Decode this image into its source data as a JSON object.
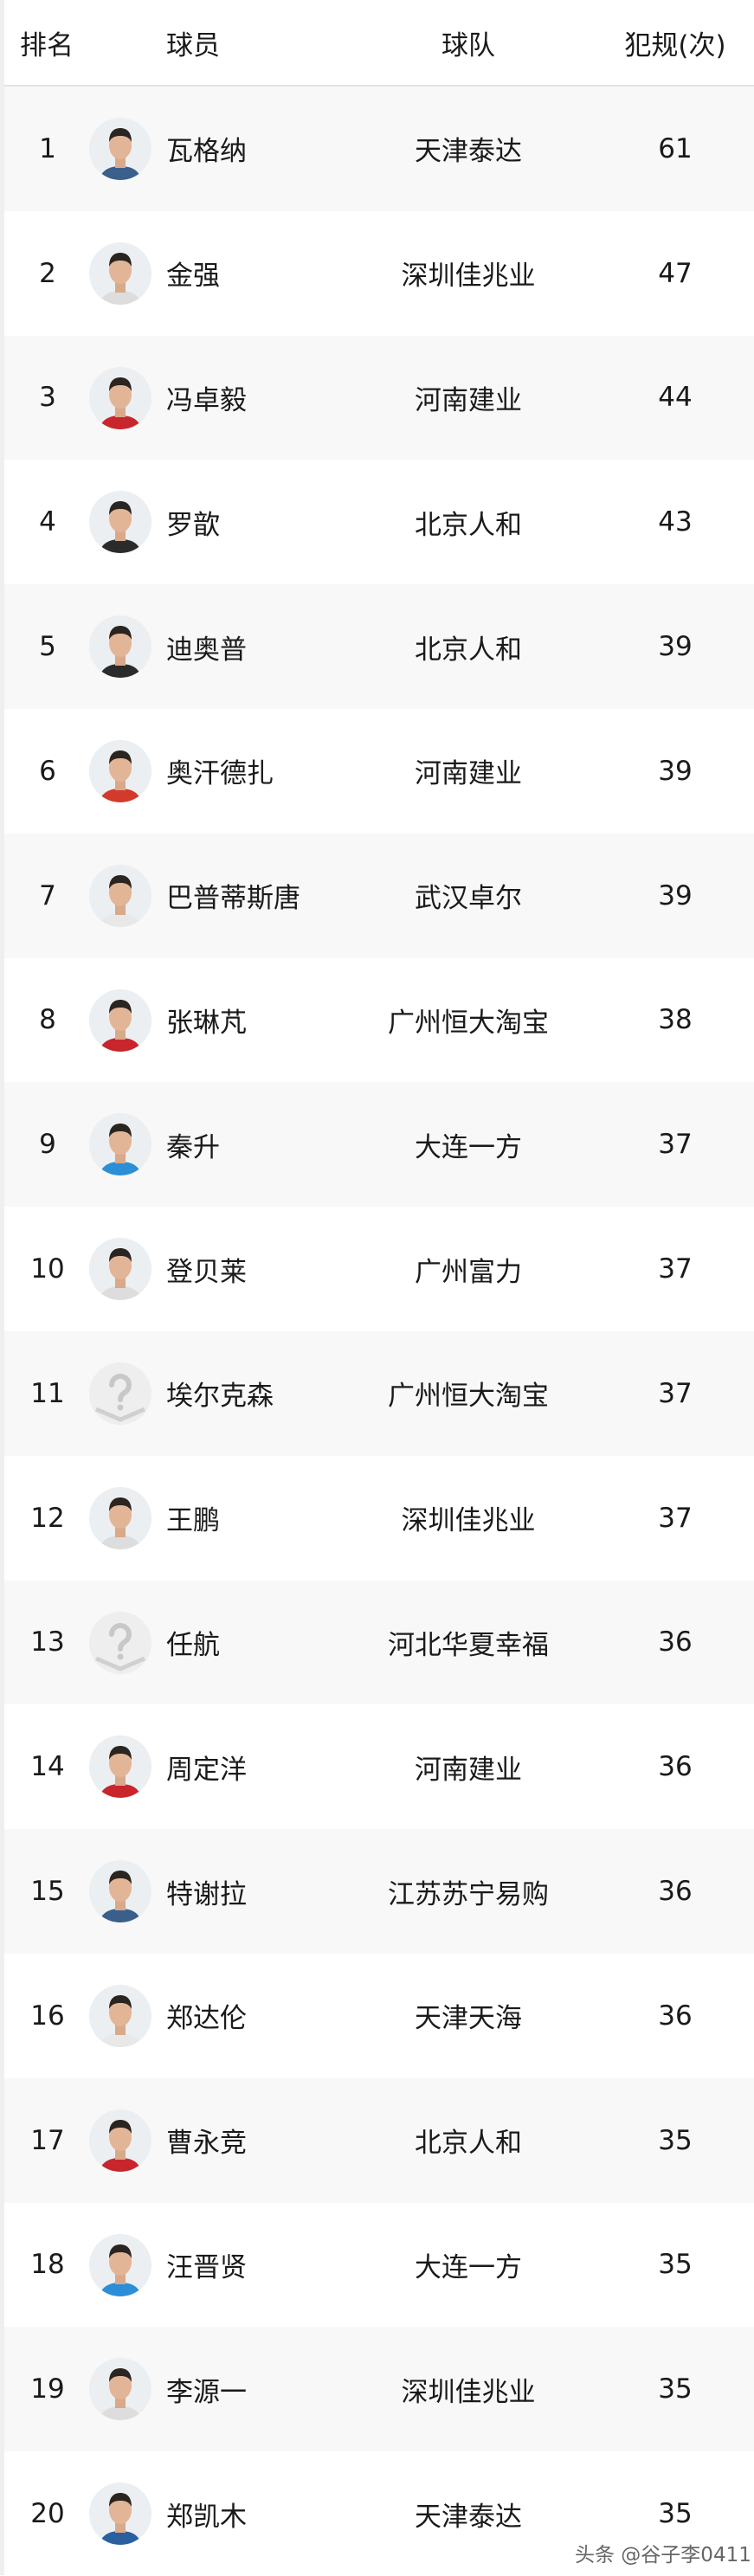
{
  "header": {
    "rank": "排名",
    "player": "球员",
    "team": "球队",
    "fouls": "犯规(次)"
  },
  "rows": [
    {
      "rank": "1",
      "player": "瓦格纳",
      "team": "天津泰达",
      "fouls": "61",
      "avatar": "player-photo",
      "shirt": "#3a5f8a"
    },
    {
      "rank": "2",
      "player": "金强",
      "team": "深圳佳兆业",
      "fouls": "47",
      "avatar": "player-photo",
      "shirt": "#dddddd"
    },
    {
      "rank": "3",
      "player": "冯卓毅",
      "team": "河南建业",
      "fouls": "44",
      "avatar": "player-photo",
      "shirt": "#c8262c"
    },
    {
      "rank": "4",
      "player": "罗歆",
      "team": "北京人和",
      "fouls": "43",
      "avatar": "player-photo",
      "shirt": "#2b2b2b"
    },
    {
      "rank": "5",
      "player": "迪奥普",
      "team": "北京人和",
      "fouls": "39",
      "avatar": "player-photo",
      "shirt": "#2b2b2b"
    },
    {
      "rank": "6",
      "player": "奥汗德扎",
      "team": "河南建业",
      "fouls": "39",
      "avatar": "player-photo",
      "shirt": "#d33a2c"
    },
    {
      "rank": "7",
      "player": "巴普蒂斯唐",
      "team": "武汉卓尔",
      "fouls": "39",
      "avatar": "player-photo",
      "shirt": "#e8e8e8"
    },
    {
      "rank": "8",
      "player": "张琳芃",
      "team": "广州恒大淘宝",
      "fouls": "38",
      "avatar": "player-photo",
      "shirt": "#c8262c"
    },
    {
      "rank": "9",
      "player": "秦升",
      "team": "大连一方",
      "fouls": "37",
      "avatar": "player-photo",
      "shirt": "#2a8fd6"
    },
    {
      "rank": "10",
      "player": "登贝莱",
      "team": "广州富力",
      "fouls": "37",
      "avatar": "player-photo",
      "shirt": "#dddddd"
    },
    {
      "rank": "11",
      "player": "埃尔克森",
      "team": "广州恒大淘宝",
      "fouls": "37",
      "avatar": "placeholder",
      "shirt": "#d6d6d6"
    },
    {
      "rank": "12",
      "player": "王鹏",
      "team": "深圳佳兆业",
      "fouls": "37",
      "avatar": "player-photo",
      "shirt": "#dddddd"
    },
    {
      "rank": "13",
      "player": "任航",
      "team": "河北华夏幸福",
      "fouls": "36",
      "avatar": "placeholder",
      "shirt": "#d6d6d6"
    },
    {
      "rank": "14",
      "player": "周定洋",
      "team": "河南建业",
      "fouls": "36",
      "avatar": "player-photo",
      "shirt": "#c8262c"
    },
    {
      "rank": "15",
      "player": "特谢拉",
      "team": "江苏苏宁易购",
      "fouls": "36",
      "avatar": "player-photo",
      "shirt": "#3a5f8a"
    },
    {
      "rank": "16",
      "player": "郑达伦",
      "team": "天津天海",
      "fouls": "36",
      "avatar": "player-photo",
      "shirt": "#e8e8e8"
    },
    {
      "rank": "17",
      "player": "曹永竞",
      "team": "北京人和",
      "fouls": "35",
      "avatar": "player-photo",
      "shirt": "#c8262c"
    },
    {
      "rank": "18",
      "player": "汪晋贤",
      "team": "大连一方",
      "fouls": "35",
      "avatar": "player-photo",
      "shirt": "#2a8fd6"
    },
    {
      "rank": "19",
      "player": "李源一",
      "team": "深圳佳兆业",
      "fouls": "35",
      "avatar": "player-photo",
      "shirt": "#dddddd"
    },
    {
      "rank": "20",
      "player": "郑凯木",
      "team": "天津泰达",
      "fouls": "35",
      "avatar": "player-photo",
      "shirt": "#2a5fa0"
    }
  ],
  "watermark": "头条 @谷子李0411"
}
